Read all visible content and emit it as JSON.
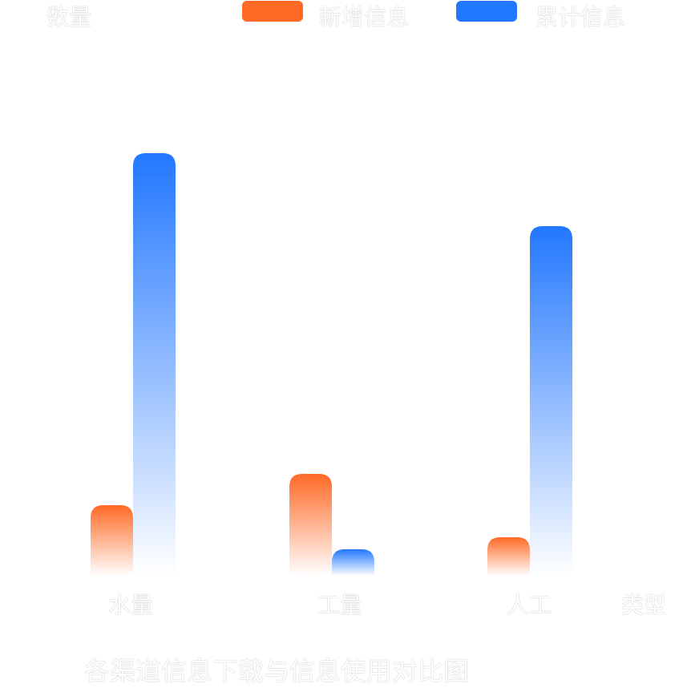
{
  "chart_data": {
    "type": "bar",
    "title": "各渠道信息下载与信息使用对比图",
    "ylabel": "数量",
    "xlabel": "类型",
    "categories": [
      "水量",
      "工量",
      "人工"
    ],
    "series": [
      {
        "name": "新增信息",
        "color": "#ff6a26",
        "values": [
          88,
          127,
          48
        ]
      },
      {
        "name": "累计信息",
        "color": "#2277ff",
        "values": [
          527,
          33,
          436
        ]
      }
    ],
    "ylim": [
      0,
      527
    ],
    "grid": false,
    "legend": "top"
  }
}
